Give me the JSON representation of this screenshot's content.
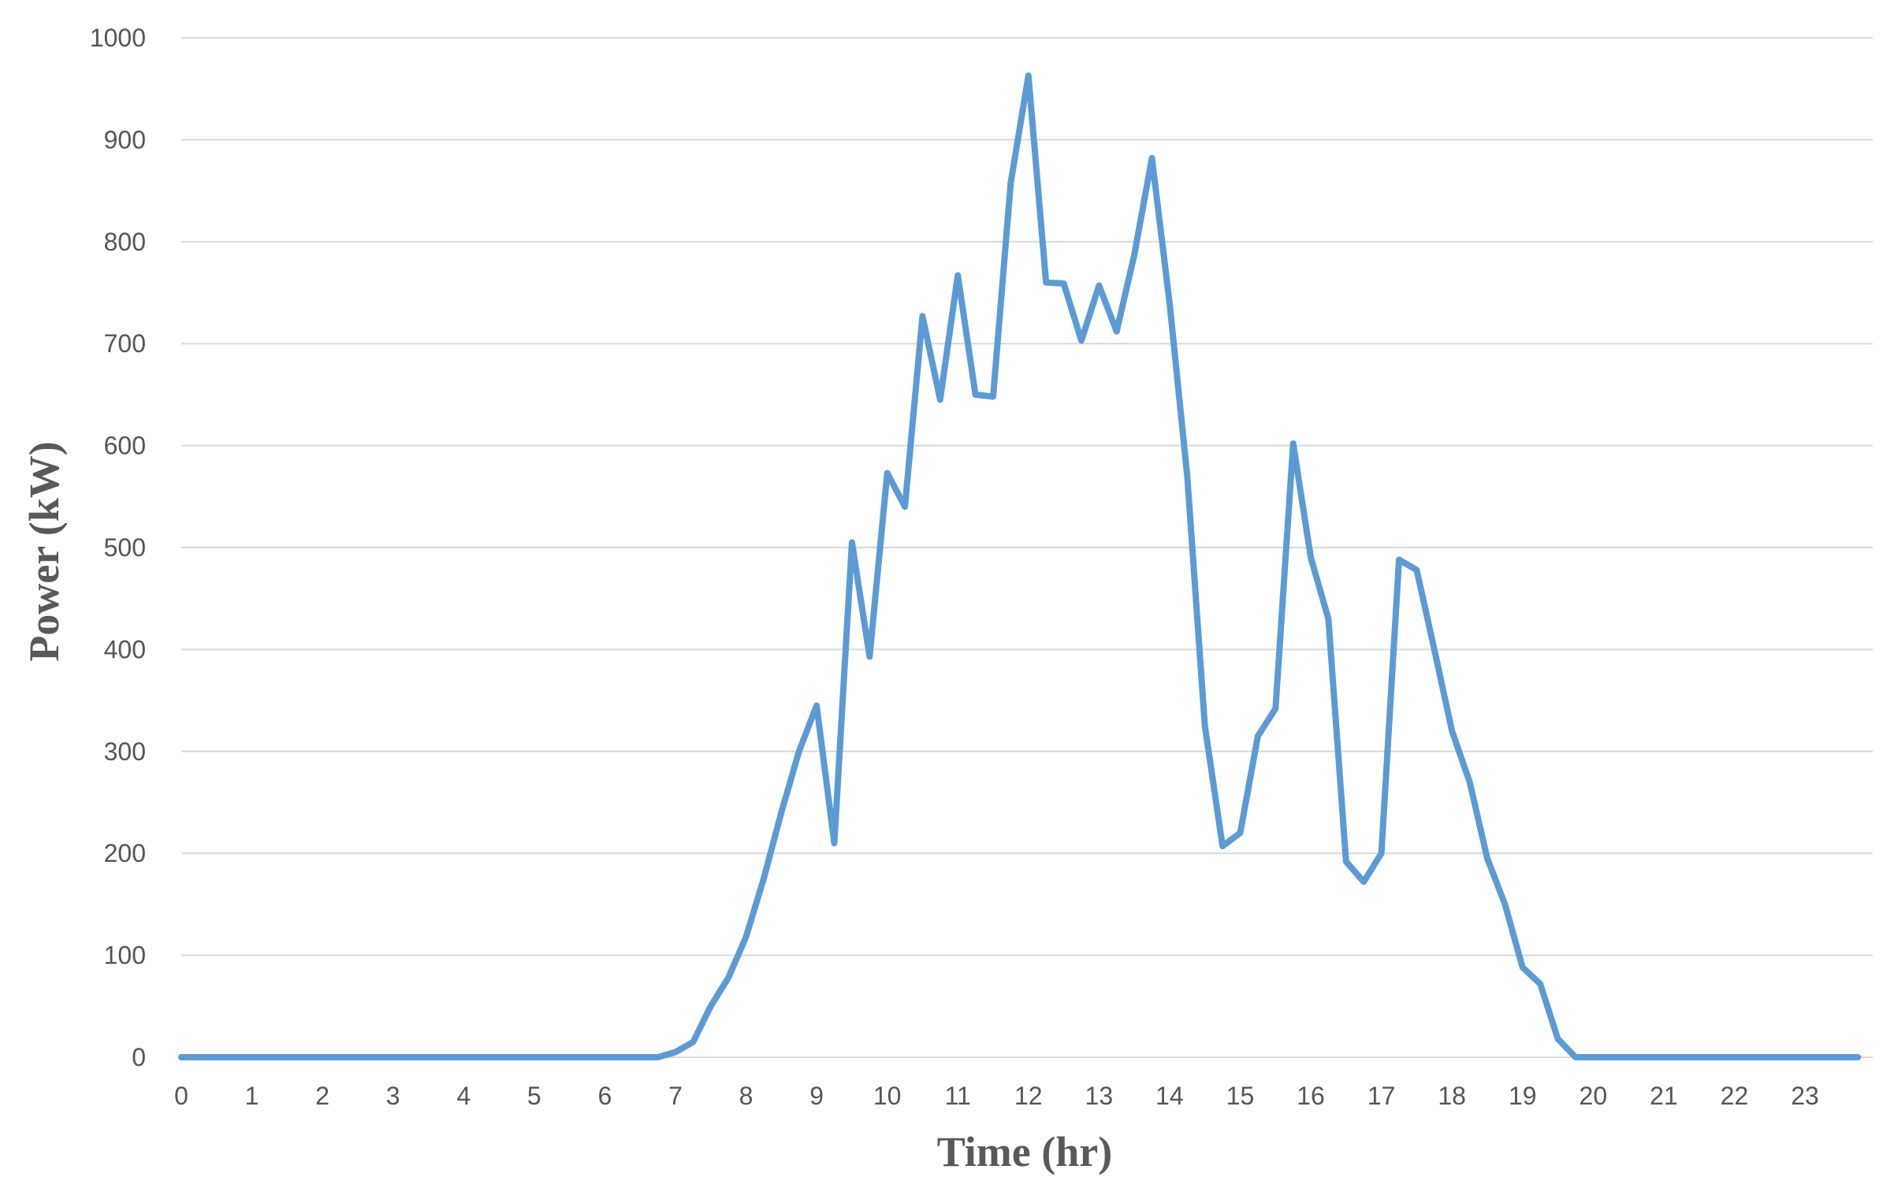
{
  "chart_data": {
    "type": "line",
    "xlabel": "Time (hr)",
    "ylabel": "Power (kW)",
    "xlim": [
      0,
      23.96
    ],
    "ylim": [
      0,
      1000
    ],
    "x_ticks": [
      0,
      1,
      2,
      3,
      4,
      5,
      6,
      7,
      8,
      9,
      10,
      11,
      12,
      13,
      14,
      15,
      16,
      17,
      18,
      19,
      20,
      21,
      22,
      23
    ],
    "y_ticks": [
      0,
      100,
      200,
      300,
      400,
      500,
      600,
      700,
      800,
      900,
      1000
    ],
    "grid": true,
    "legend": "none",
    "colors": {
      "series": "#5b9bd5",
      "grid": "#d9d9d9",
      "text": "#555555"
    },
    "series": [
      {
        "x": [
          0,
          0.25,
          0.5,
          0.75,
          1,
          1.25,
          1.5,
          1.75,
          2,
          2.25,
          2.5,
          2.75,
          3,
          3.25,
          3.5,
          3.75,
          4,
          4.25,
          4.5,
          4.75,
          5,
          5.25,
          5.5,
          5.75,
          6,
          6.25,
          6.5,
          6.75,
          7,
          7.25,
          7.5,
          7.75,
          8,
          8.25,
          8.5,
          8.75,
          9,
          9.25,
          9.5,
          9.75,
          10,
          10.25,
          10.5,
          10.75,
          11,
          11.25,
          11.5,
          11.75,
          12,
          12.25,
          12.5,
          12.75,
          13,
          13.25,
          13.5,
          13.75,
          14,
          14.25,
          14.5,
          14.75,
          15,
          15.25,
          15.5,
          15.75,
          16,
          16.25,
          16.5,
          16.75,
          17,
          17.25,
          17.5,
          17.75,
          18,
          18.25,
          18.5,
          18.75,
          19,
          19.25,
          19.5,
          19.75,
          20,
          20.25,
          20.5,
          20.75,
          21,
          21.25,
          21.5,
          21.75,
          22,
          22.25,
          22.5,
          22.75,
          23,
          23.25,
          23.5,
          23.75
        ],
        "values": [
          0,
          0,
          0,
          0,
          0,
          0,
          0,
          0,
          0,
          0,
          0,
          0,
          0,
          0,
          0,
          0,
          0,
          0,
          0,
          0,
          0,
          0,
          0,
          0,
          0,
          0,
          0,
          0,
          5,
          15,
          50,
          78,
          118,
          175,
          240,
          300,
          345,
          210,
          505,
          393,
          573,
          540,
          727,
          645,
          767,
          650,
          648,
          858,
          963,
          760,
          759,
          703,
          757,
          712,
          787,
          882,
          740,
          570,
          325,
          207,
          220,
          315,
          342,
          602,
          490,
          430,
          192,
          172,
          200,
          488,
          478,
          400,
          320,
          270,
          195,
          150,
          88,
          72,
          18,
          0,
          0,
          0,
          0,
          0,
          0,
          0,
          0,
          0,
          0,
          0,
          0,
          0,
          0,
          0,
          0,
          0
        ]
      }
    ]
  }
}
